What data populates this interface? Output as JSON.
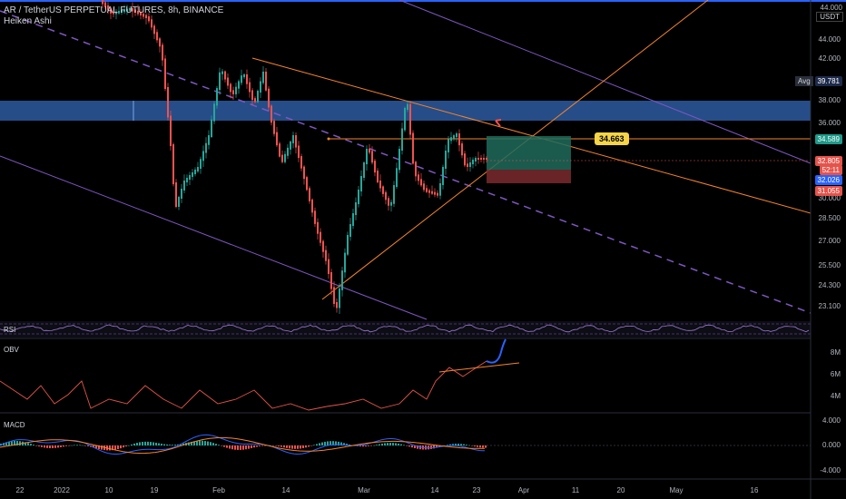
{
  "header": {
    "symbol_line": "AR / TetherUS PERPETUAL FUTURES, 8h, BINANCE",
    "chart_style": "Heiken Ashi",
    "currency": "USDT",
    "top_value": "44.000"
  },
  "price_axis": {
    "ticks": [
      "44.000",
      "42.000",
      "40.000",
      "38.000",
      "36.000",
      "34.000",
      "32.000",
      "30.000",
      "28.500",
      "27.000",
      "25.500",
      "24.300",
      "23.100"
    ],
    "labels": {
      "avg_tag": "Avg",
      "avg_value": "39.781",
      "level": "34.589",
      "last": "32.805",
      "countdown": "52:11",
      "low1": "32.026",
      "low2": "31.055"
    },
    "colors": {
      "level": "#1e9a8a",
      "last": "#e5534b",
      "low1": "#2962ff",
      "low2": "#e5534b"
    }
  },
  "annotation": {
    "price_tag": "34.663"
  },
  "panes": {
    "rsi": {
      "label": "RSI"
    },
    "obv": {
      "label": "OBV",
      "ticks": [
        "8M",
        "6M",
        "4M"
      ]
    },
    "macd": {
      "label": "MACD",
      "ticks": [
        "4.000",
        "0.000",
        "-4.000"
      ]
    }
  },
  "time_axis": {
    "ticks": [
      "22",
      "2022",
      "10",
      "19",
      "Feb",
      "14",
      "Mar",
      "14",
      "23",
      "Apr",
      "11",
      "20",
      "May",
      "16"
    ]
  },
  "colors": {
    "bull": "#26a69a",
    "bear": "#ef5350",
    "zone": "#2d5aa0",
    "trend_orange": "#f5842a",
    "channel": "#7e57c2"
  }
}
